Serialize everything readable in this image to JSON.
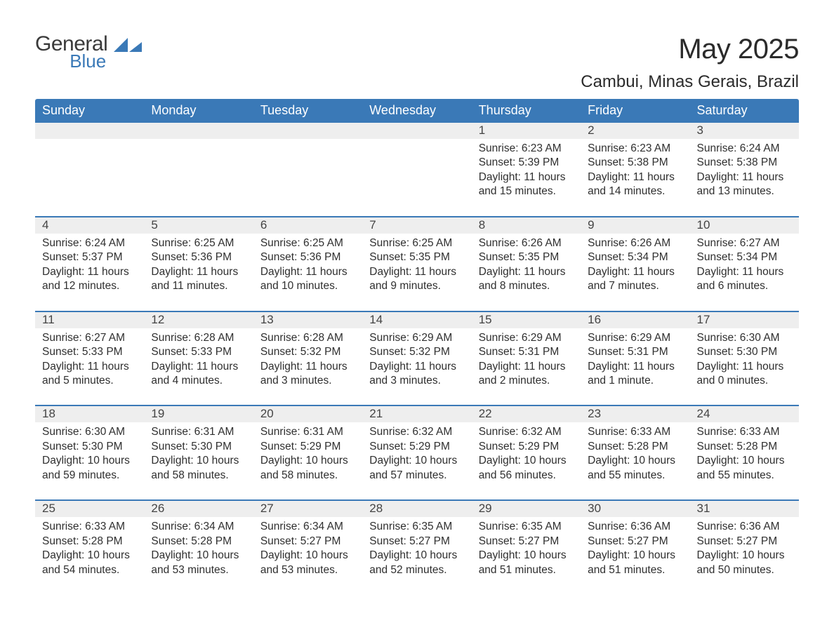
{
  "brand": {
    "general": "General",
    "blue": "Blue"
  },
  "colors": {
    "primary": "#3a79b7",
    "text": "#2b2b2b",
    "daytext": "#2f2f2f",
    "daynum": "#444444",
    "stripe": "#eeeeee",
    "bg": "#ffffff"
  },
  "title": "May 2025",
  "location": "Cambui, Minas Gerais, Brazil",
  "weekdays": [
    "Sunday",
    "Monday",
    "Tuesday",
    "Wednesday",
    "Thursday",
    "Friday",
    "Saturday"
  ],
  "weeks": [
    [
      null,
      null,
      null,
      null,
      {
        "n": "1",
        "sunrise": "Sunrise: 6:23 AM",
        "sunset": "Sunset: 5:39 PM",
        "day1": "Daylight: 11 hours",
        "day2": "and 15 minutes."
      },
      {
        "n": "2",
        "sunrise": "Sunrise: 6:23 AM",
        "sunset": "Sunset: 5:38 PM",
        "day1": "Daylight: 11 hours",
        "day2": "and 14 minutes."
      },
      {
        "n": "3",
        "sunrise": "Sunrise: 6:24 AM",
        "sunset": "Sunset: 5:38 PM",
        "day1": "Daylight: 11 hours",
        "day2": "and 13 minutes."
      }
    ],
    [
      {
        "n": "4",
        "sunrise": "Sunrise: 6:24 AM",
        "sunset": "Sunset: 5:37 PM",
        "day1": "Daylight: 11 hours",
        "day2": "and 12 minutes."
      },
      {
        "n": "5",
        "sunrise": "Sunrise: 6:25 AM",
        "sunset": "Sunset: 5:36 PM",
        "day1": "Daylight: 11 hours",
        "day2": "and 11 minutes."
      },
      {
        "n": "6",
        "sunrise": "Sunrise: 6:25 AM",
        "sunset": "Sunset: 5:36 PM",
        "day1": "Daylight: 11 hours",
        "day2": "and 10 minutes."
      },
      {
        "n": "7",
        "sunrise": "Sunrise: 6:25 AM",
        "sunset": "Sunset: 5:35 PM",
        "day1": "Daylight: 11 hours",
        "day2": "and 9 minutes."
      },
      {
        "n": "8",
        "sunrise": "Sunrise: 6:26 AM",
        "sunset": "Sunset: 5:35 PM",
        "day1": "Daylight: 11 hours",
        "day2": "and 8 minutes."
      },
      {
        "n": "9",
        "sunrise": "Sunrise: 6:26 AM",
        "sunset": "Sunset: 5:34 PM",
        "day1": "Daylight: 11 hours",
        "day2": "and 7 minutes."
      },
      {
        "n": "10",
        "sunrise": "Sunrise: 6:27 AM",
        "sunset": "Sunset: 5:34 PM",
        "day1": "Daylight: 11 hours",
        "day2": "and 6 minutes."
      }
    ],
    [
      {
        "n": "11",
        "sunrise": "Sunrise: 6:27 AM",
        "sunset": "Sunset: 5:33 PM",
        "day1": "Daylight: 11 hours",
        "day2": "and 5 minutes."
      },
      {
        "n": "12",
        "sunrise": "Sunrise: 6:28 AM",
        "sunset": "Sunset: 5:33 PM",
        "day1": "Daylight: 11 hours",
        "day2": "and 4 minutes."
      },
      {
        "n": "13",
        "sunrise": "Sunrise: 6:28 AM",
        "sunset": "Sunset: 5:32 PM",
        "day1": "Daylight: 11 hours",
        "day2": "and 3 minutes."
      },
      {
        "n": "14",
        "sunrise": "Sunrise: 6:29 AM",
        "sunset": "Sunset: 5:32 PM",
        "day1": "Daylight: 11 hours",
        "day2": "and 3 minutes."
      },
      {
        "n": "15",
        "sunrise": "Sunrise: 6:29 AM",
        "sunset": "Sunset: 5:31 PM",
        "day1": "Daylight: 11 hours",
        "day2": "and 2 minutes."
      },
      {
        "n": "16",
        "sunrise": "Sunrise: 6:29 AM",
        "sunset": "Sunset: 5:31 PM",
        "day1": "Daylight: 11 hours",
        "day2": "and 1 minute."
      },
      {
        "n": "17",
        "sunrise": "Sunrise: 6:30 AM",
        "sunset": "Sunset: 5:30 PM",
        "day1": "Daylight: 11 hours",
        "day2": "and 0 minutes."
      }
    ],
    [
      {
        "n": "18",
        "sunrise": "Sunrise: 6:30 AM",
        "sunset": "Sunset: 5:30 PM",
        "day1": "Daylight: 10 hours",
        "day2": "and 59 minutes."
      },
      {
        "n": "19",
        "sunrise": "Sunrise: 6:31 AM",
        "sunset": "Sunset: 5:30 PM",
        "day1": "Daylight: 10 hours",
        "day2": "and 58 minutes."
      },
      {
        "n": "20",
        "sunrise": "Sunrise: 6:31 AM",
        "sunset": "Sunset: 5:29 PM",
        "day1": "Daylight: 10 hours",
        "day2": "and 58 minutes."
      },
      {
        "n": "21",
        "sunrise": "Sunrise: 6:32 AM",
        "sunset": "Sunset: 5:29 PM",
        "day1": "Daylight: 10 hours",
        "day2": "and 57 minutes."
      },
      {
        "n": "22",
        "sunrise": "Sunrise: 6:32 AM",
        "sunset": "Sunset: 5:29 PM",
        "day1": "Daylight: 10 hours",
        "day2": "and 56 minutes."
      },
      {
        "n": "23",
        "sunrise": "Sunrise: 6:33 AM",
        "sunset": "Sunset: 5:28 PM",
        "day1": "Daylight: 10 hours",
        "day2": "and 55 minutes."
      },
      {
        "n": "24",
        "sunrise": "Sunrise: 6:33 AM",
        "sunset": "Sunset: 5:28 PM",
        "day1": "Daylight: 10 hours",
        "day2": "and 55 minutes."
      }
    ],
    [
      {
        "n": "25",
        "sunrise": "Sunrise: 6:33 AM",
        "sunset": "Sunset: 5:28 PM",
        "day1": "Daylight: 10 hours",
        "day2": "and 54 minutes."
      },
      {
        "n": "26",
        "sunrise": "Sunrise: 6:34 AM",
        "sunset": "Sunset: 5:28 PM",
        "day1": "Daylight: 10 hours",
        "day2": "and 53 minutes."
      },
      {
        "n": "27",
        "sunrise": "Sunrise: 6:34 AM",
        "sunset": "Sunset: 5:27 PM",
        "day1": "Daylight: 10 hours",
        "day2": "and 53 minutes."
      },
      {
        "n": "28",
        "sunrise": "Sunrise: 6:35 AM",
        "sunset": "Sunset: 5:27 PM",
        "day1": "Daylight: 10 hours",
        "day2": "and 52 minutes."
      },
      {
        "n": "29",
        "sunrise": "Sunrise: 6:35 AM",
        "sunset": "Sunset: 5:27 PM",
        "day1": "Daylight: 10 hours",
        "day2": "and 51 minutes."
      },
      {
        "n": "30",
        "sunrise": "Sunrise: 6:36 AM",
        "sunset": "Sunset: 5:27 PM",
        "day1": "Daylight: 10 hours",
        "day2": "and 51 minutes."
      },
      {
        "n": "31",
        "sunrise": "Sunrise: 6:36 AM",
        "sunset": "Sunset: 5:27 PM",
        "day1": "Daylight: 10 hours",
        "day2": "and 50 minutes."
      }
    ]
  ]
}
